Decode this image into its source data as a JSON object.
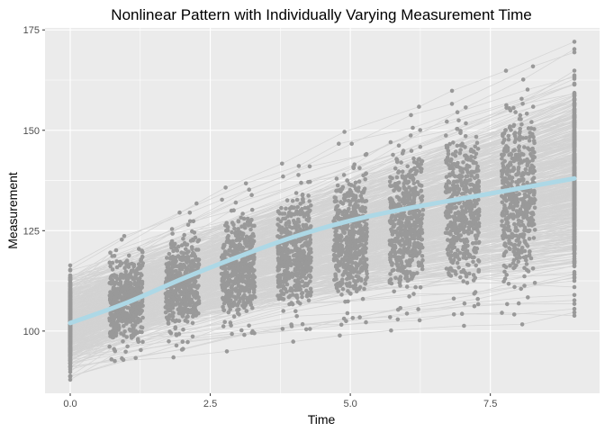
{
  "chart_data": {
    "type": "scatter",
    "title": "Nonlinear Pattern with Individually Varying Measurement Time",
    "xlabel": "Time",
    "ylabel": "Measurement",
    "xlim": [
      -0.45,
      9.45
    ],
    "ylim": [
      84.5,
      175.5
    ],
    "x_ticks": [
      {
        "value": 0,
        "label": "0.0"
      },
      {
        "value": 2.5,
        "label": "2.5"
      },
      {
        "value": 5,
        "label": "5.0"
      },
      {
        "value": 7.5,
        "label": "7.5"
      }
    ],
    "y_ticks": [
      {
        "value": 100,
        "label": "100"
      },
      {
        "value": 125,
        "label": "125"
      },
      {
        "value": 150,
        "label": "150"
      },
      {
        "value": 175,
        "label": "175"
      }
    ],
    "grid": true,
    "panel_background": "#EBEBEB",
    "grid_color": "#FFFFFF",
    "point_color": "#999999",
    "individual_line_color": "#D3D3D3",
    "trend_color": "#ADD8E6",
    "measurement_occasions": [
      0,
      1,
      2,
      3,
      4,
      5,
      6,
      7,
      8,
      9
    ],
    "time_jitter": 0.3,
    "number_of_individuals": 500,
    "individual_trajectory_ranges": {
      "start": [
        88,
        121
      ],
      "end": [
        104,
        172
      ]
    },
    "series": [
      {
        "x": [
          0,
          1,
          2,
          3,
          4,
          5,
          6,
          7,
          8,
          9
        ],
        "y": [
          102,
          107,
          113,
          118.5,
          123.5,
          127.5,
          130.5,
          133,
          135.5,
          138
        ]
      }
    ]
  }
}
